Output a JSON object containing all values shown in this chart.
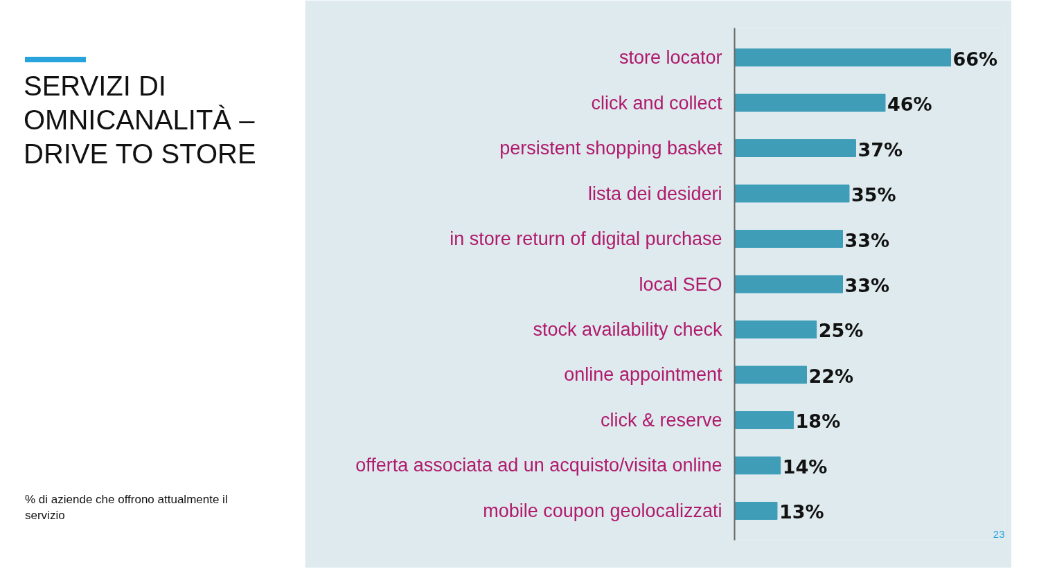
{
  "chart_data": {
    "type": "bar",
    "orientation": "horizontal",
    "title": "SERVIZI DI OMNICANALITÀ – DRIVE TO STORE",
    "subtitle": "% di aziende che offrono attualmente il servizio",
    "categories": [
      "store locator",
      "click and collect",
      "persistent shopping basket",
      "lista dei desideri",
      "in store return of digital purchase",
      "local SEO",
      "stock availability check",
      "online appointment",
      "click & reserve",
      "offerta associata ad un acquisto/visita online",
      "mobile coupon geolocalizzati"
    ],
    "values": [
      66,
      46,
      37,
      35,
      33,
      33,
      25,
      22,
      18,
      14,
      13
    ],
    "value_labels": [
      "66%",
      "46%",
      "37%",
      "35%",
      "33%",
      "33%",
      "25%",
      "22%",
      "18%",
      "14%",
      "13%"
    ],
    "color": "#3f9db8",
    "grid": false,
    "annotations": [
      "23"
    ]
  }
}
